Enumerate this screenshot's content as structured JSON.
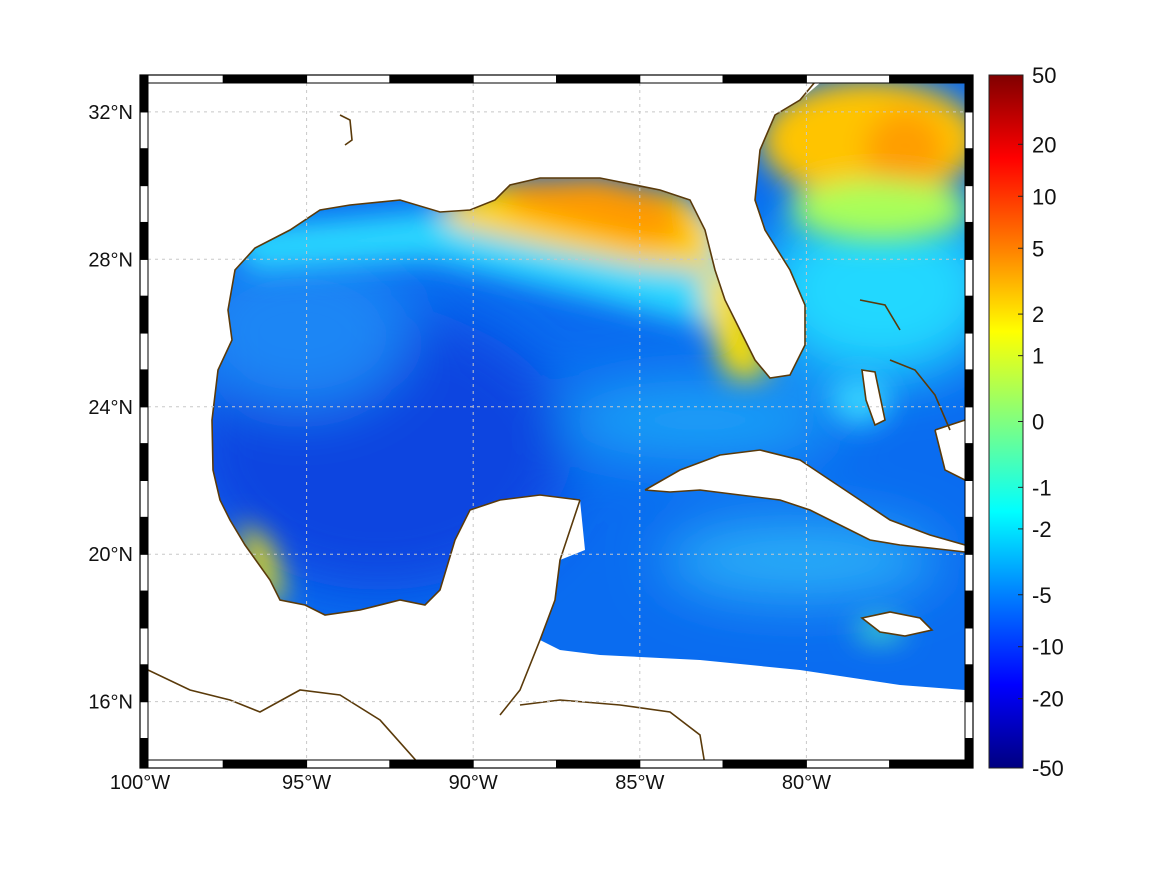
{
  "map": {
    "projection": "equirectangular",
    "lon_range": [
      -100,
      -75
    ],
    "lat_range": [
      14.2,
      33
    ],
    "lon_ticks": [
      -100,
      -95,
      -90,
      -85,
      -80
    ],
    "lat_ticks": [
      16,
      20,
      24,
      28,
      32
    ],
    "lon_tick_labels": [
      "100°W",
      "95°W",
      "90°W",
      "85°W",
      "80°W"
    ],
    "lat_tick_labels": [
      "16°N",
      "20°N",
      "24°N",
      "28°N",
      "32°N"
    ],
    "grid": true,
    "frame": "alternating black-white border",
    "coastline_color": "#5a3a0a",
    "land_color": "#ffffff"
  },
  "colorbar": {
    "position": "right",
    "colormap": "jet",
    "scale": "nonlinear (symmetric)",
    "ticks": [
      "50",
      "20",
      "10",
      "5",
      "2",
      "1",
      "0",
      "-1",
      "-2",
      "-5",
      "-10",
      "-20",
      "-50"
    ],
    "tick_fractions": [
      0,
      0.1,
      0.175,
      0.25,
      0.345,
      0.405,
      0.5,
      0.595,
      0.655,
      0.75,
      0.825,
      0.9,
      1
    ],
    "colors": [
      "#800000",
      "#ff0000",
      "#ff8000",
      "#ffff00",
      "#80ff80",
      "#00ffff",
      "#0080ff",
      "#0000ff",
      "#000080"
    ]
  },
  "field_regions": [
    {
      "name": "northern-gulf-shelf",
      "value": "5"
    },
    {
      "name": "florida-shelf",
      "value": "2"
    },
    {
      "name": "atlantic-north",
      "value": "5"
    },
    {
      "name": "deep-gulf",
      "value": "-10"
    },
    {
      "name": "caribbean",
      "value": "-5"
    }
  ]
}
